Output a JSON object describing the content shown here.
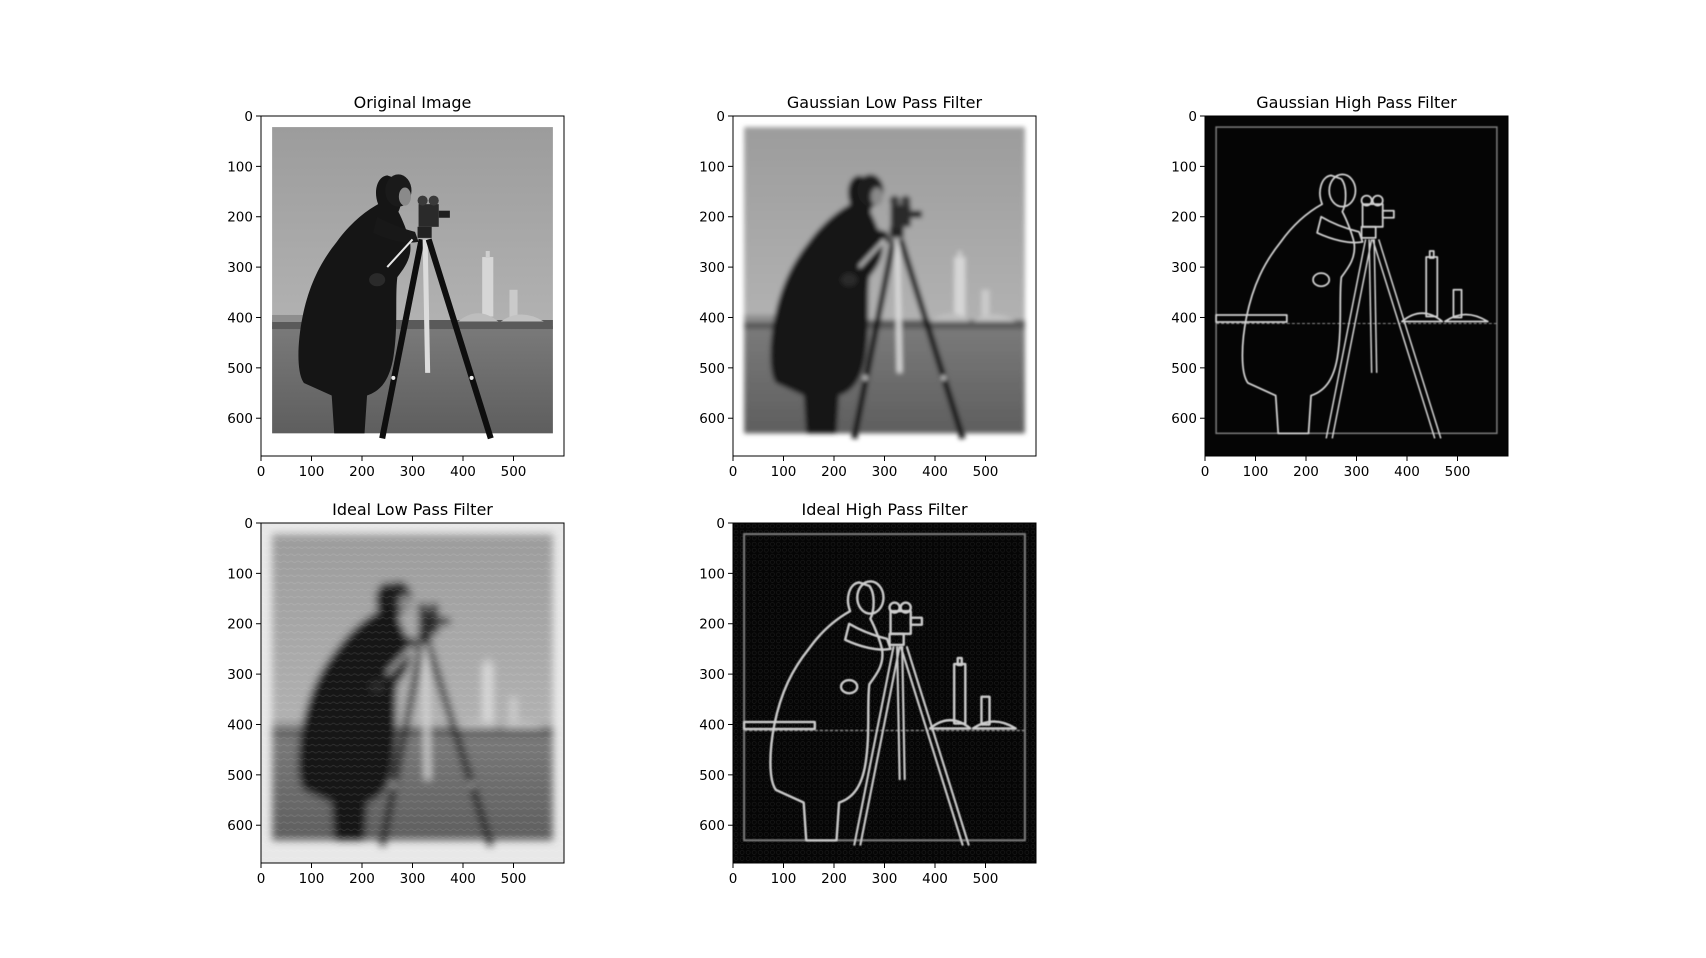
{
  "figure": {
    "background": "#ffffff",
    "panels": [
      {
        "id": "original",
        "title": "Original Image",
        "variant": "original",
        "xticks": [
          "0",
          "100",
          "200",
          "300",
          "400",
          "500"
        ],
        "yticks": [
          "0",
          "100",
          "200",
          "300",
          "400",
          "500",
          "600"
        ]
      },
      {
        "id": "gaussian-low-pass",
        "title": "Gaussian Low Pass Filter",
        "variant": "lowpass",
        "xticks": [
          "0",
          "100",
          "200",
          "300",
          "400",
          "500"
        ],
        "yticks": [
          "0",
          "100",
          "200",
          "300",
          "400",
          "500",
          "600"
        ]
      },
      {
        "id": "gaussian-high-pass",
        "title": "Gaussian High Pass Filter",
        "variant": "highpass",
        "xticks": [
          "0",
          "100",
          "200",
          "300",
          "400",
          "500"
        ],
        "yticks": [
          "0",
          "100",
          "200",
          "300",
          "400",
          "500",
          "600"
        ]
      },
      {
        "id": "ideal-low-pass",
        "title": "Ideal Low Pass Filter",
        "variant": "ideal-lowpass",
        "xticks": [
          "0",
          "100",
          "200",
          "300",
          "400",
          "500"
        ],
        "yticks": [
          "0",
          "100",
          "200",
          "300",
          "400",
          "500",
          "600"
        ]
      },
      {
        "id": "ideal-high-pass",
        "title": "Ideal High Pass Filter",
        "variant": "ideal-highpass",
        "xticks": [
          "0",
          "100",
          "200",
          "300",
          "400",
          "500"
        ],
        "yticks": [
          "0",
          "100",
          "200",
          "300",
          "400",
          "500",
          "600"
        ]
      }
    ],
    "colors": {
      "sky": "#a6a6a6",
      "grass": "#6e6e6e",
      "figure": "#151515",
      "edge": "#d0d0d0",
      "dark": "#050505"
    }
  }
}
